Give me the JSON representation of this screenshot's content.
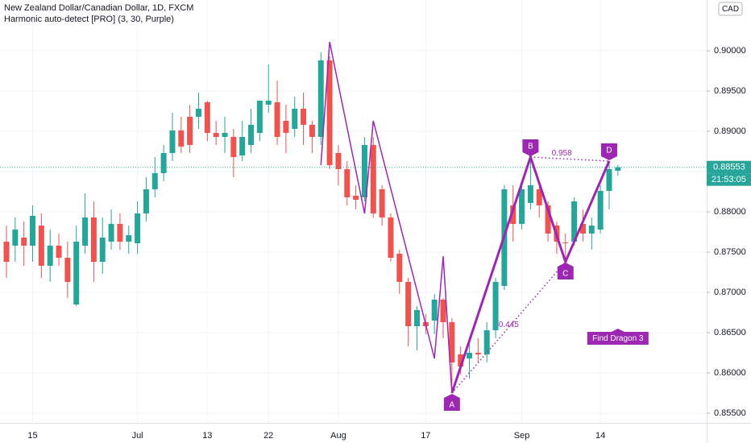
{
  "chart_data": {
    "type": "candlestick",
    "title": "New Zealand Dollar/Canadian Dollar, 1D, FXCM",
    "subtitle": "Harmonic auto-detect [PRO] (3, 30, Purple)",
    "currency": "CAD",
    "last_price_label": "0.88553",
    "countdown": "21:53:05",
    "categories": [
      null,
      null,
      null,
      "15",
      null,
      null,
      null,
      null,
      null,
      null,
      null,
      null,
      null,
      null,
      null,
      "Jul",
      null,
      null,
      null,
      null,
      null,
      null,
      null,
      "13",
      null,
      null,
      null,
      null,
      null,
      null,
      "22",
      null,
      null,
      null,
      null,
      null,
      null,
      null,
      "Aug",
      null,
      null,
      null,
      null,
      null,
      null,
      null,
      null,
      null,
      "17",
      null,
      null,
      null,
      null,
      null,
      null,
      null,
      null,
      null,
      null,
      "Sep",
      null,
      null,
      null,
      null,
      null,
      null,
      null,
      null,
      "14",
      null,
      null
    ],
    "open": [
      0.8763,
      0.8758,
      0.8768,
      0.8758,
      0.8783,
      0.8733,
      0.8758,
      0.8743,
      0.8685,
      0.8758,
      0.8793,
      0.8738,
      0.8763,
      0.8785,
      0.8763,
      0.8761,
      0.8798,
      0.8828,
      0.8848,
      0.8873,
      0.8901,
      0.8918,
      0.8918,
      0.8936,
      0.8898,
      0.8893,
      0.8893,
      0.887,
      0.8883,
      0.8898,
      0.8933,
      0.8936,
      0.8913,
      0.8903,
      0.8928,
      0.8908,
      0.8893,
      0.8988,
      0.8873,
      0.8853,
      0.882,
      0.8818,
      0.8883,
      0.8828,
      0.8793,
      0.8748,
      0.8713,
      0.8658,
      0.8663,
      0.8665,
      0.8691,
      0.8663,
      0.8623,
      0.8618,
      0.8625,
      0.8623,
      0.8653,
      0.8708,
      0.8808,
      0.8785,
      0.8811,
      0.8828,
      0.8808,
      0.8783,
      0.8762,
      0.8763,
      0.8785,
      0.8773,
      0.8778,
      0.8826,
      0.8851
    ],
    "high": [
      0.8783,
      0.8793,
      0.8788,
      0.8808,
      0.8798,
      0.8778,
      0.8773,
      0.8763,
      0.8783,
      0.8823,
      0.8813,
      0.8793,
      0.8803,
      0.8798,
      0.8783,
      0.8813,
      0.8843,
      0.8868,
      0.8883,
      0.8923,
      0.8918,
      0.8933,
      0.8948,
      0.8938,
      0.8913,
      0.8918,
      0.8903,
      0.8913,
      0.8928,
      0.8938,
      0.8983,
      0.8963,
      0.8933,
      0.8943,
      0.8948,
      0.8913,
      0.8998,
      0.8993,
      0.8883,
      0.8863,
      0.8833,
      0.8893,
      0.8893,
      0.8833,
      0.8798,
      0.8753,
      0.8718,
      0.8683,
      0.8673,
      0.8698,
      0.8693,
      0.8668,
      0.8633,
      0.8643,
      0.8643,
      0.8663,
      0.8718,
      0.8833,
      0.8833,
      0.8838,
      0.8868,
      0.8838,
      0.8813,
      0.8788,
      0.8773,
      0.8818,
      0.8803,
      0.8793,
      0.8833,
      0.8863,
      0.8858
    ],
    "low": [
      0.8718,
      0.8738,
      0.8733,
      0.8738,
      0.8718,
      0.8713,
      0.8733,
      0.8693,
      0.8683,
      0.8748,
      0.8713,
      0.8723,
      0.8753,
      0.8753,
      0.8748,
      0.8748,
      0.8788,
      0.8818,
      0.8838,
      0.8863,
      0.8873,
      0.8873,
      0.8903,
      0.8888,
      0.8883,
      0.8873,
      0.8843,
      0.8863,
      0.8873,
      0.8888,
      0.8923,
      0.8883,
      0.8873,
      0.8893,
      0.8883,
      0.8873,
      0.8883,
      0.8853,
      0.8833,
      0.8808,
      0.8803,
      0.8813,
      0.8793,
      0.8783,
      0.8738,
      0.8698,
      0.8633,
      0.8628,
      0.8648,
      0.8648,
      0.8643,
      0.8578,
      0.8598,
      0.8593,
      0.8613,
      0.8613,
      0.8643,
      0.8703,
      0.8763,
      0.8778,
      0.8803,
      0.8793,
      0.8763,
      0.8748,
      0.8738,
      0.8758,
      0.8763,
      0.8753,
      0.8773,
      0.8803,
      0.8845
    ],
    "close": [
      0.8738,
      0.8778,
      0.8758,
      0.8795,
      0.8733,
      0.8758,
      0.8743,
      0.8713,
      0.8763,
      0.8793,
      0.8738,
      0.8768,
      0.8785,
      0.8763,
      0.8771,
      0.8798,
      0.8828,
      0.8848,
      0.8873,
      0.8901,
      0.8881,
      0.8883,
      0.8928,
      0.8898,
      0.8893,
      0.8898,
      0.8868,
      0.8893,
      0.8908,
      0.8938,
      0.8938,
      0.8893,
      0.8898,
      0.8928,
      0.8908,
      0.8893,
      0.8988,
      0.8858,
      0.8853,
      0.8818,
      0.8815,
      0.8883,
      0.8798,
      0.8793,
      0.8743,
      0.8713,
      0.8658,
      0.8678,
      0.8658,
      0.8691,
      0.8663,
      0.8613,
      0.8608,
      0.8625,
      0.8623,
      0.8653,
      0.8713,
      0.8828,
      0.8785,
      0.8828,
      0.8833,
      0.8808,
      0.8773,
      0.8763,
      0.8761,
      0.8813,
      0.8773,
      0.8783,
      0.8826,
      0.8853,
      0.88553
    ],
    "up_color": "#26a69a",
    "down_color": "#ef5350",
    "ylim": [
      0.8538,
      0.9063
    ],
    "yticks": [
      {
        "value": 0.855,
        "label": "0.85500"
      },
      {
        "value": 0.86,
        "label": "0.86000"
      },
      {
        "value": 0.865,
        "label": "0.86500"
      },
      {
        "value": 0.87,
        "label": "0.87000"
      },
      {
        "value": 0.875,
        "label": "0.87500"
      },
      {
        "value": 0.88,
        "label": "0.88000"
      },
      {
        "value": 0.885,
        "label": "0.88500"
      },
      {
        "value": 0.89,
        "label": "0.89000"
      },
      {
        "value": 0.895,
        "label": "0.89500"
      },
      {
        "value": 0.9,
        "label": "0.90000"
      }
    ],
    "grid": true,
    "zigzag": {
      "color": "#9c27b0",
      "x": [
        36,
        37,
        41,
        42,
        49,
        50,
        51
      ],
      "values": [
        0.8858,
        0.9011,
        0.8798,
        0.8913,
        0.8618,
        0.8745,
        0.8575
      ]
    },
    "pattern": {
      "color": "#9c27b0",
      "points": [
        {
          "label": "A",
          "x": 51,
          "value": 0.8575
        },
        {
          "label": "B",
          "x": 60,
          "value": 0.8868
        },
        {
          "label": "C",
          "x": 64,
          "value": 0.8738
        },
        {
          "label": "D",
          "x": 69,
          "value": 0.8863
        }
      ],
      "ratios": [
        "0.445",
        "0.958"
      ],
      "signal": "Find Dragon 3"
    }
  }
}
